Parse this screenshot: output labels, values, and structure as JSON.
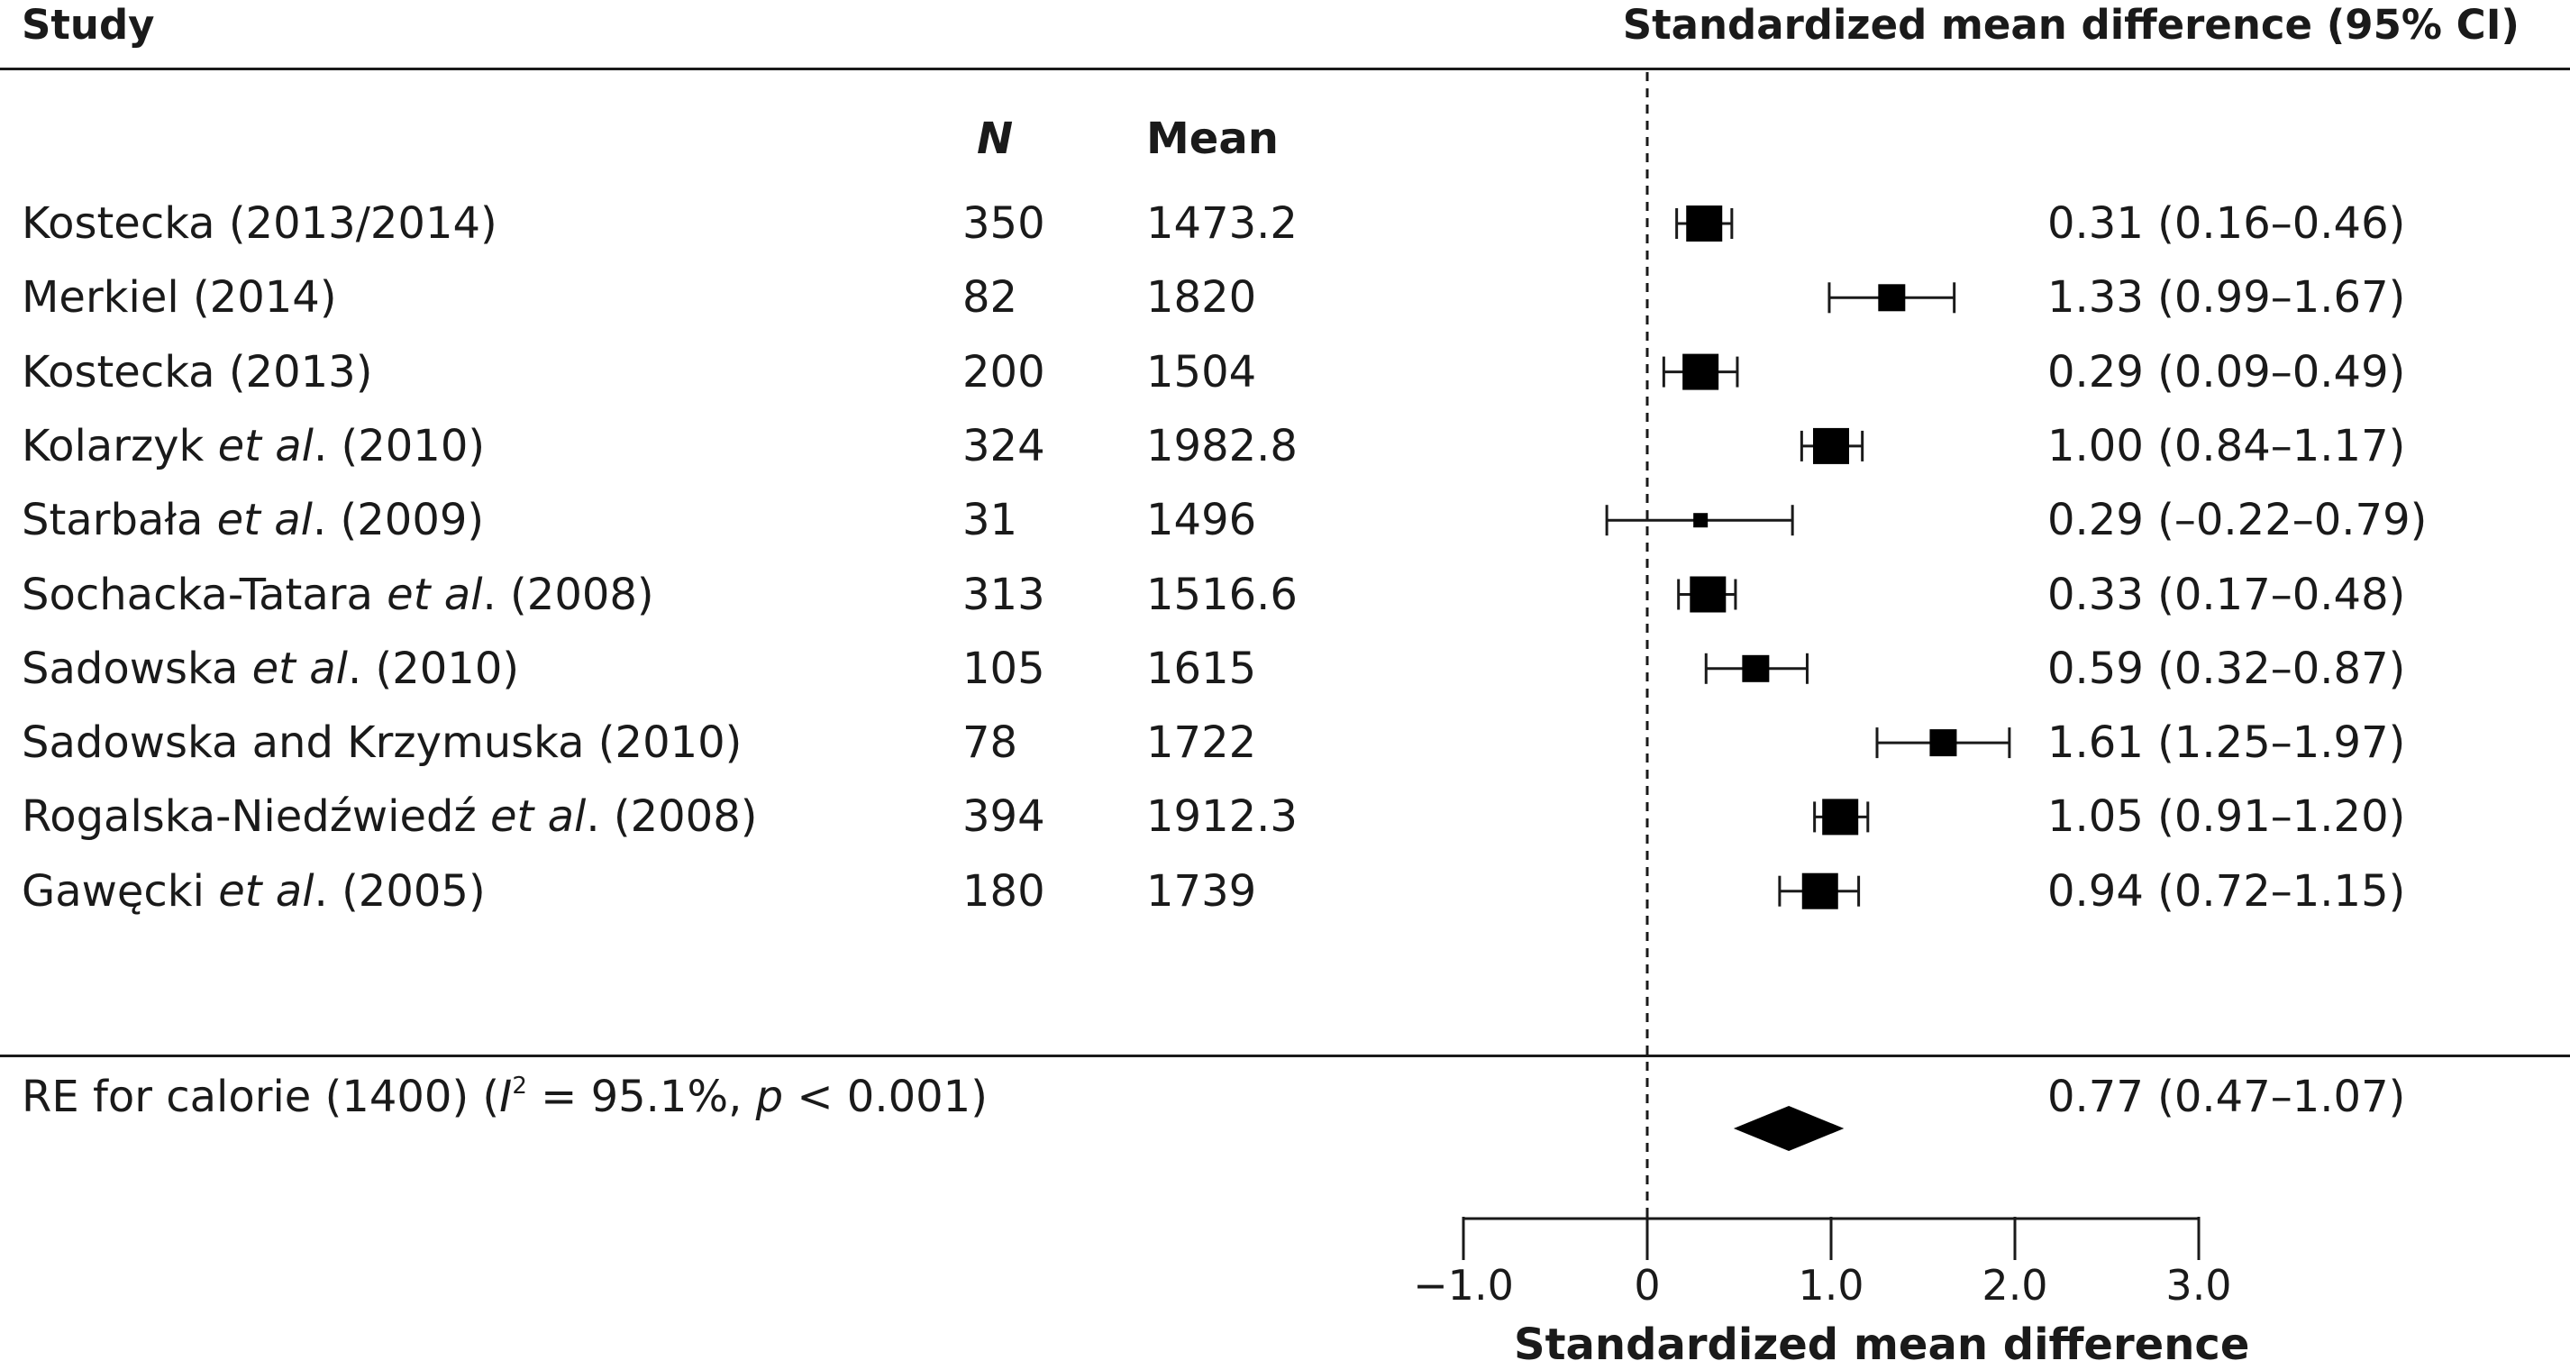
{
  "header": {
    "study_label": "Study",
    "effect_label": "Standardized mean difference (95% CI)"
  },
  "columns": {
    "n_label": "N",
    "mean_label": "Mean"
  },
  "chart_data": {
    "type": "forest",
    "xlabel": "Standardized mean difference",
    "xlim": [
      -1.0,
      3.0
    ],
    "ticks": [
      -1.0,
      0,
      1.0,
      2.0,
      3.0
    ],
    "tick_labels": [
      "−1.0",
      "0",
      "1.0",
      "2.0",
      "3.0"
    ],
    "reference_line": 0,
    "studies": [
      {
        "name": "Kostecka (2013/2014)",
        "n": "350",
        "mean": "1473.2",
        "smd": 0.31,
        "lo": 0.16,
        "hi": 0.46,
        "ci_text": "0.31 (0.16–0.46)",
        "weight": "large"
      },
      {
        "name": "Merkiel (2014)",
        "n": "82",
        "mean": "1820",
        "smd": 1.33,
        "lo": 0.99,
        "hi": 1.67,
        "ci_text": "1.33 (0.99–1.67)",
        "weight": "medium"
      },
      {
        "name": "Kostecka (2013)",
        "n": "200",
        "mean": "1504",
        "smd": 0.29,
        "lo": 0.09,
        "hi": 0.49,
        "ci_text": "0.29 (0.09–0.49)",
        "weight": "large"
      },
      {
        "name_parts": [
          "Kolarzyk ",
          "et al",
          ". (2010)"
        ],
        "n": "324",
        "mean": "1982.8",
        "smd": 1.0,
        "lo": 0.84,
        "hi": 1.17,
        "ci_text": "1.00 (0.84–1.17)",
        "weight": "large"
      },
      {
        "name_parts": [
          "Starbała ",
          "et al",
          ". (2009)"
        ],
        "n": "31",
        "mean": "1496",
        "smd": 0.29,
        "lo": -0.22,
        "hi": 0.79,
        "ci_text": "0.29 (–0.22–0.79)",
        "weight": "small"
      },
      {
        "name_parts": [
          "Sochacka-Tatara ",
          "et al",
          ". (2008)"
        ],
        "n": "313",
        "mean": "1516.6",
        "smd": 0.33,
        "lo": 0.17,
        "hi": 0.48,
        "ci_text": "0.33 (0.17–0.48)",
        "weight": "large"
      },
      {
        "name_parts": [
          "Sadowska ",
          "et al",
          ". (2010)"
        ],
        "n": "105",
        "mean": "1615",
        "smd": 0.59,
        "lo": 0.32,
        "hi": 0.87,
        "ci_text": "0.59 (0.32–0.87)",
        "weight": "medium"
      },
      {
        "name": "Sadowska and Krzymuska (2010)",
        "n": "78",
        "mean": "1722",
        "smd": 1.61,
        "lo": 1.25,
        "hi": 1.97,
        "ci_text": "1.61 (1.25–1.97)",
        "weight": "medium"
      },
      {
        "name_parts": [
          "Rogalska-Niedźwiedź ",
          "et al",
          ". (2008)"
        ],
        "n": "394",
        "mean": "1912.3",
        "smd": 1.05,
        "lo": 0.91,
        "hi": 1.2,
        "ci_text": "1.05 (0.91–1.20)",
        "weight": "large"
      },
      {
        "name_parts": [
          "Gawęcki ",
          "et al",
          ". (2005)"
        ],
        "n": "180",
        "mean": "1739",
        "smd": 0.94,
        "lo": 0.72,
        "hi": 1.15,
        "ci_text": "0.94 (0.72–1.15)",
        "weight": "large"
      }
    ],
    "summary": {
      "label_pre": "RE for calorie (1400) (",
      "i_symbol": "I",
      "i_sup": "2",
      "label_mid": " = 95.1%, ",
      "p_symbol": "p",
      "label_post": " < 0.001)",
      "smd": 0.77,
      "lo": 0.47,
      "hi": 1.07,
      "ci_text": "0.77 (0.47–1.07)"
    }
  }
}
